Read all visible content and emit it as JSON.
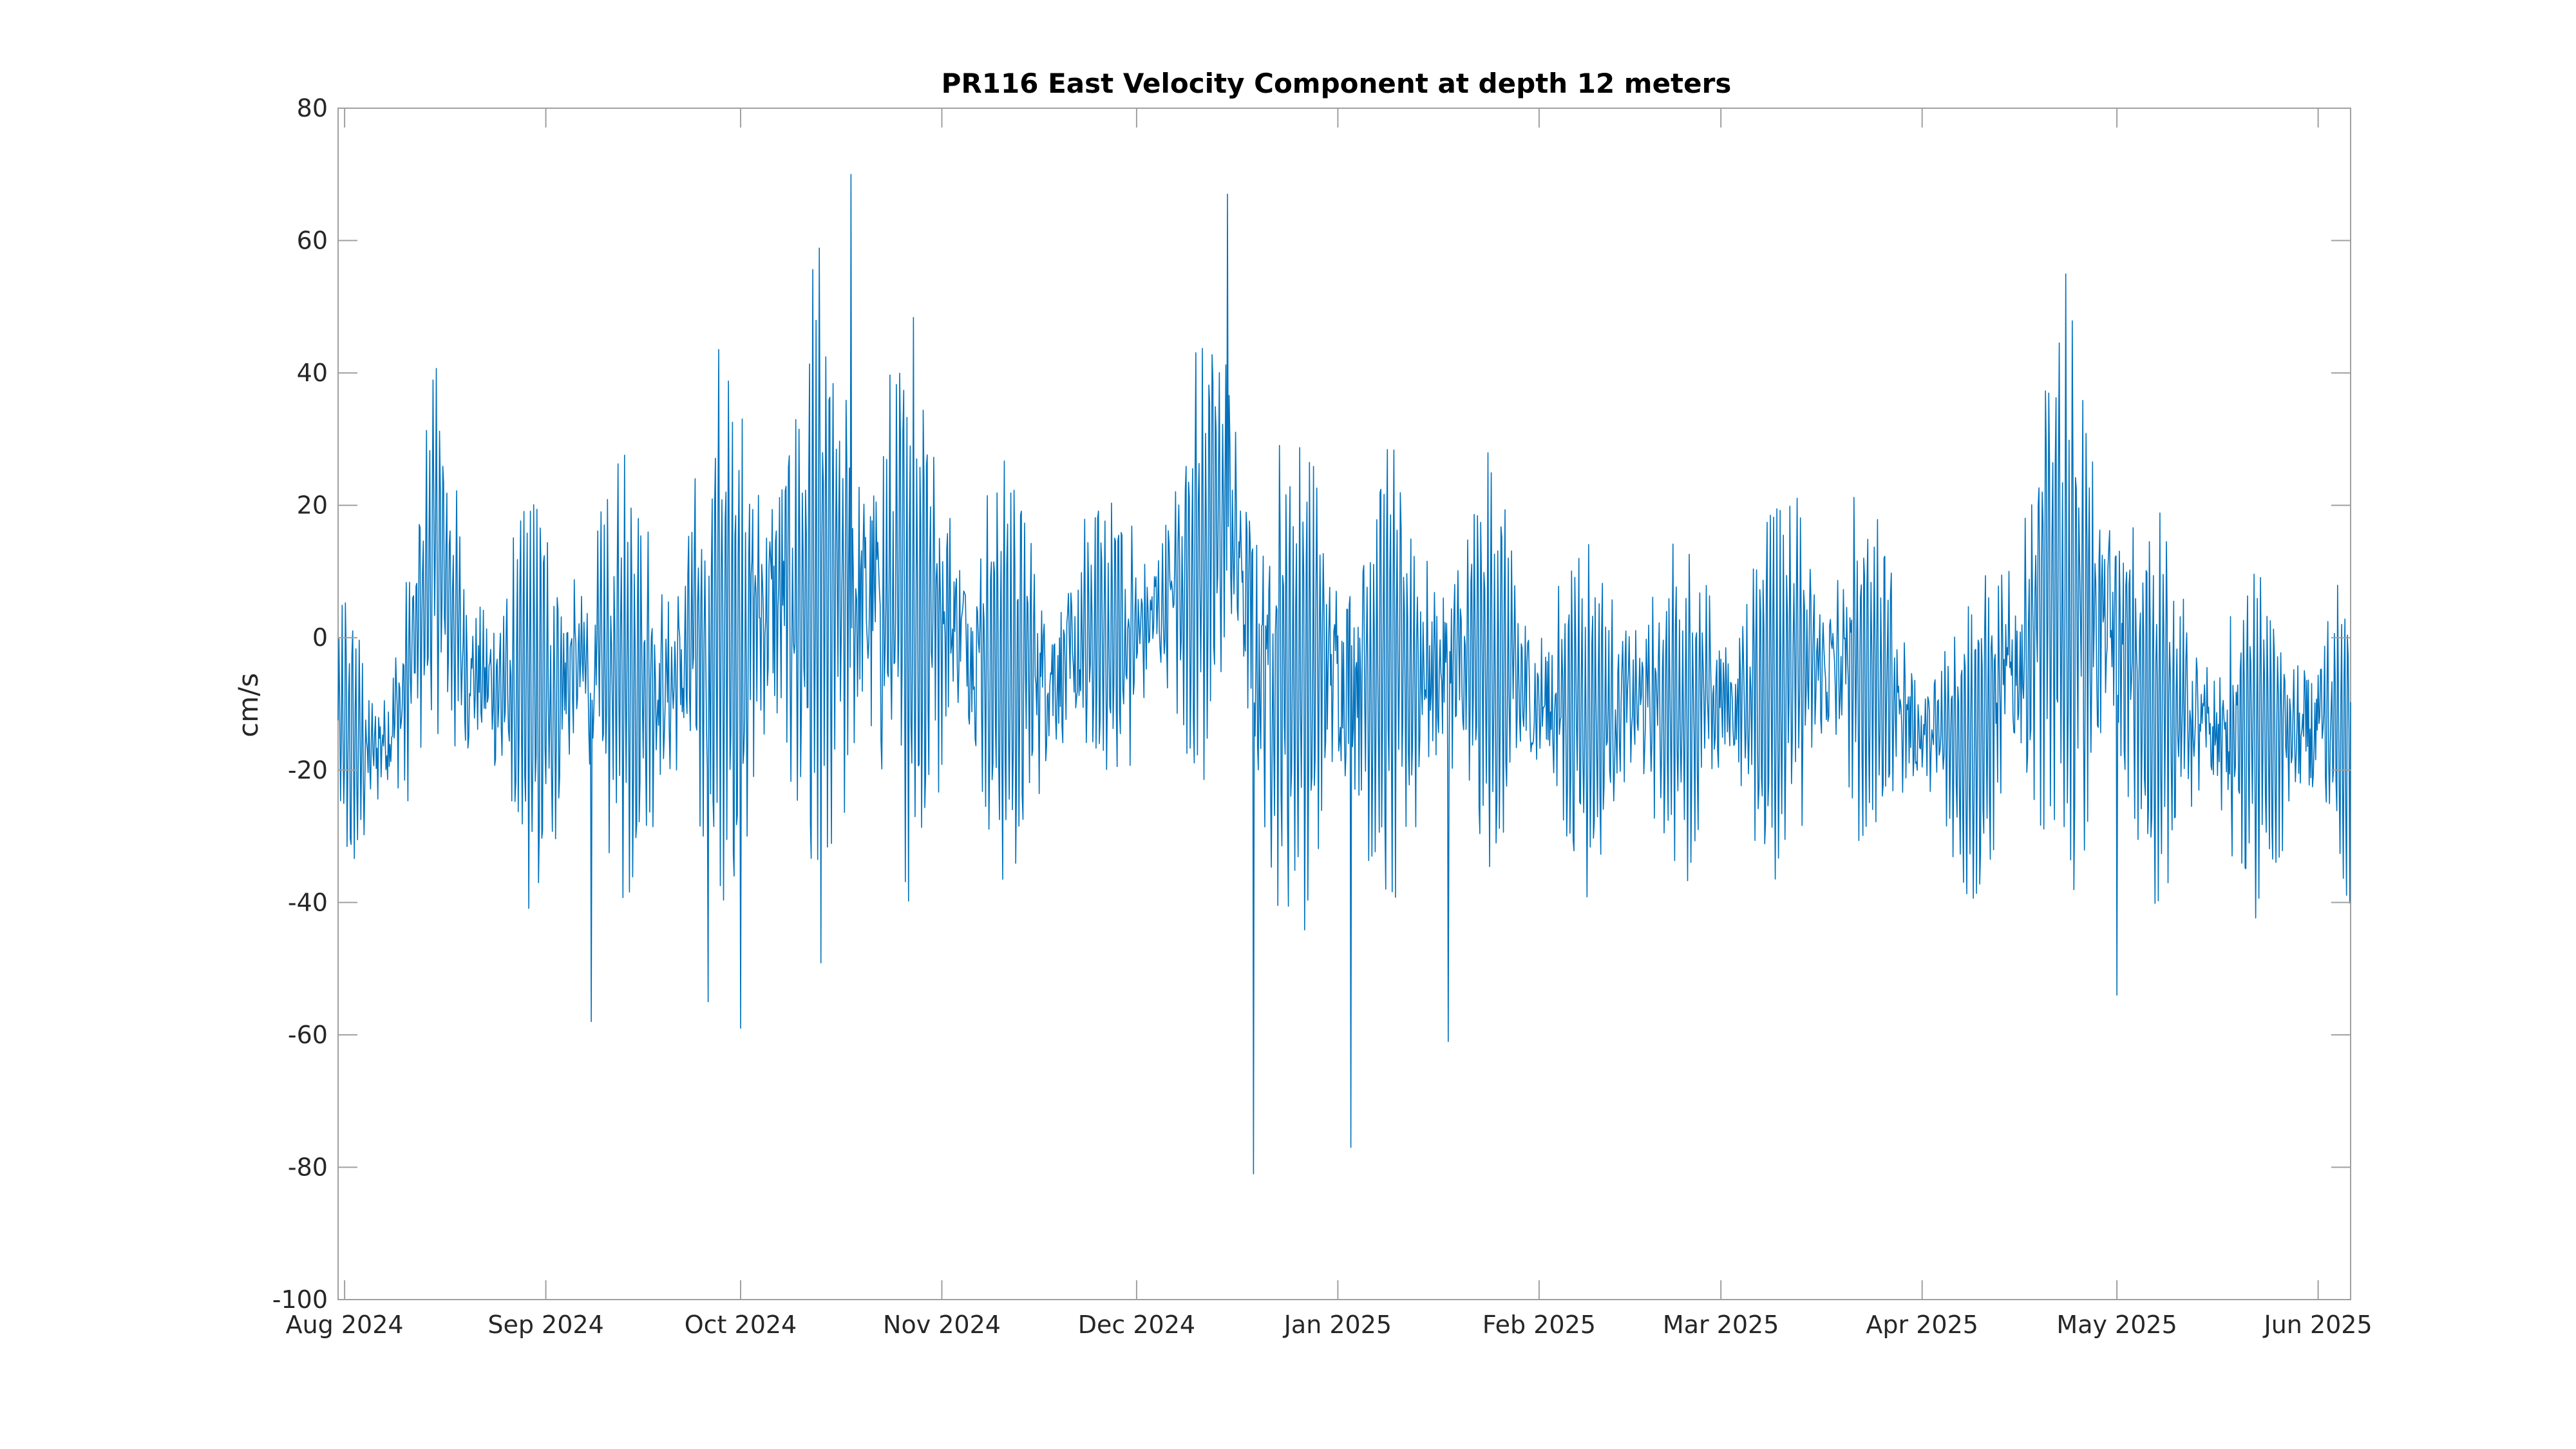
{
  "chart_data": {
    "type": "line",
    "title": "PR116 East Velocity Component at depth 12 meters",
    "xlabel": "",
    "ylabel": "cm/s",
    "ylim": [
      -100,
      80
    ],
    "xlim": [
      "2024-07-31",
      "2025-06-06"
    ],
    "yticks": [
      -100,
      -80,
      -60,
      -40,
      -20,
      0,
      20,
      40,
      60,
      80
    ],
    "xticks": [
      {
        "date": "2024-08-01",
        "label": "Aug 2024"
      },
      {
        "date": "2024-09-01",
        "label": "Sep 2024"
      },
      {
        "date": "2024-10-01",
        "label": "Oct 2024"
      },
      {
        "date": "2024-11-01",
        "label": "Nov 2024"
      },
      {
        "date": "2024-12-01",
        "label": "Dec 2024"
      },
      {
        "date": "2025-01-01",
        "label": "Jan 2025"
      },
      {
        "date": "2025-02-01",
        "label": "Feb 2025"
      },
      {
        "date": "2025-03-01",
        "label": "Mar 2025"
      },
      {
        "date": "2025-04-01",
        "label": "Apr 2025"
      },
      {
        "date": "2025-05-01",
        "label": "May 2025"
      },
      {
        "date": "2025-06-01",
        "label": "Jun 2025"
      }
    ],
    "grid": false,
    "color": "#0072BD",
    "series": [
      {
        "x": [
          "2024-08-01",
          "2024-08-05",
          "2024-08-10",
          "2024-08-15",
          "2024-08-20",
          "2024-08-25",
          "2024-09-01",
          "2024-09-05",
          "2024-09-10",
          "2024-09-15",
          "2024-09-20",
          "2024-09-25",
          "2024-10-01",
          "2024-10-05",
          "2024-10-10",
          "2024-10-15",
          "2024-10-20",
          "2024-10-25",
          "2024-11-01",
          "2024-11-05",
          "2024-11-10",
          "2024-11-15",
          "2024-11-20",
          "2024-11-25",
          "2024-12-01",
          "2024-12-05",
          "2024-12-10",
          "2024-12-15",
          "2024-12-20",
          "2024-12-25",
          "2025-01-01",
          "2025-01-05",
          "2025-01-10",
          "2025-01-15",
          "2025-01-20",
          "2025-01-25",
          "2025-02-01",
          "2025-02-05",
          "2025-02-10",
          "2025-02-15",
          "2025-02-20",
          "2025-02-25",
          "2025-03-01",
          "2025-03-05",
          "2025-03-10",
          "2025-03-15",
          "2025-03-20",
          "2025-03-25",
          "2025-04-01",
          "2025-04-05",
          "2025-04-10",
          "2025-04-15",
          "2025-04-20",
          "2025-04-25",
          "2025-05-01",
          "2025-05-05",
          "2025-05-10",
          "2025-05-15",
          "2025-05-20",
          "2025-05-25",
          "2025-06-01",
          "2025-06-05"
        ],
        "mean": [
          -15,
          -18,
          -10,
          15,
          -5,
          -8,
          -10,
          -5,
          -5,
          -5,
          -8,
          0,
          0,
          5,
          5,
          5,
          5,
          5,
          5,
          0,
          -5,
          -5,
          -5,
          0,
          0,
          5,
          10,
          20,
          -5,
          -5,
          -5,
          -5,
          -5,
          -5,
          -5,
          -5,
          -10,
          -10,
          -12,
          -10,
          -10,
          -10,
          -10,
          -10,
          -5,
          -5,
          -5,
          -5,
          -15,
          -15,
          -15,
          -5,
          5,
          5,
          0,
          -10,
          -10,
          -15,
          -15,
          -15,
          -15,
          -15
        ],
        "amplitude": [
          18,
          15,
          20,
          20,
          20,
          20,
          25,
          25,
          25,
          25,
          25,
          30,
          35,
          35,
          35,
          40,
          40,
          35,
          30,
          25,
          25,
          25,
          20,
          20,
          20,
          20,
          25,
          25,
          35,
          30,
          30,
          30,
          25,
          25,
          25,
          25,
          20,
          20,
          20,
          20,
          20,
          20,
          20,
          20,
          25,
          25,
          25,
          20,
          15,
          15,
          20,
          30,
          35,
          35,
          30,
          25,
          20,
          20,
          20,
          20,
          20,
          20
        ]
      }
    ],
    "extremes": [
      {
        "x": "2024-10-18",
        "y": 70
      },
      {
        "x": "2024-12-15",
        "y": 67
      },
      {
        "x": "2024-12-19",
        "y": -81
      },
      {
        "x": "2025-01-03",
        "y": -77
      },
      {
        "x": "2024-09-26",
        "y": -55
      },
      {
        "x": "2024-10-01",
        "y": -59
      },
      {
        "x": "2024-09-08",
        "y": -58
      },
      {
        "x": "2025-05-01",
        "y": -54
      },
      {
        "x": "2025-01-18",
        "y": -61
      }
    ]
  }
}
